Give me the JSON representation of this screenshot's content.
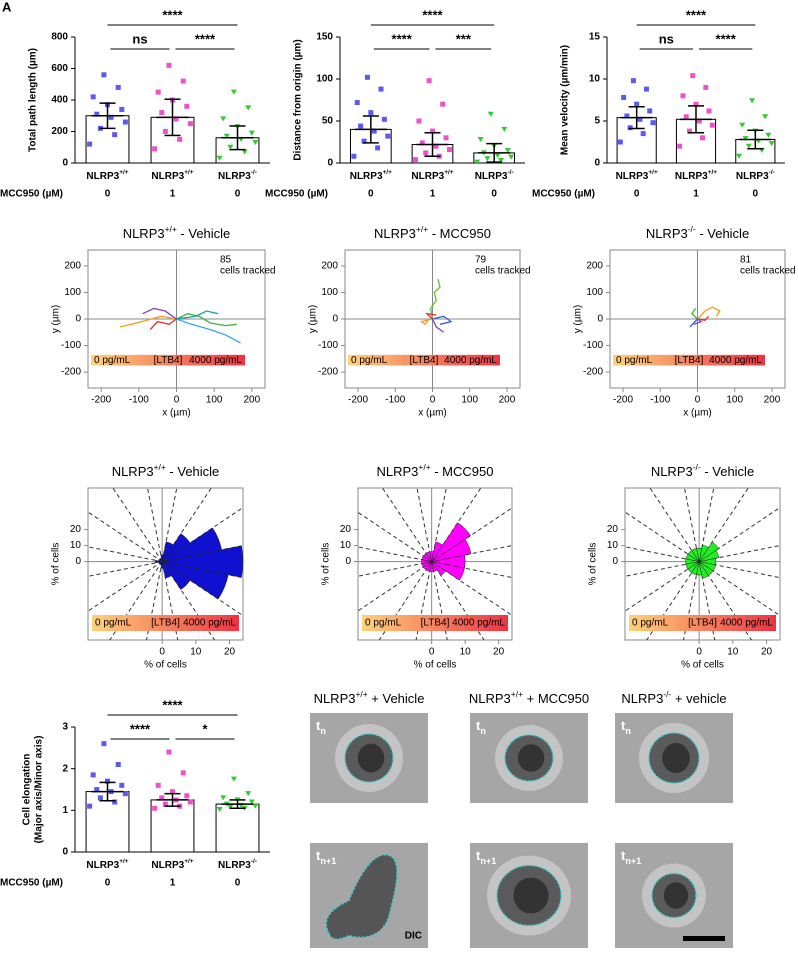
{
  "panel_label": "A",
  "chart_data": [
    {
      "type": "dotbar",
      "ylabel": "Total path length (µm)",
      "categories": [
        {
          "base": "NLRP3",
          "sup": "+/+"
        },
        {
          "base": "NLRP3",
          "sup": "+/+"
        },
        {
          "base": "NLRP3",
          "sup": "-/-"
        }
      ],
      "treatment_label": "MCC950 (µM)",
      "treatment": [
        "0",
        "1",
        "0"
      ],
      "colors": [
        "#5a5af5",
        "#f050d0",
        "#2ecc2e"
      ],
      "markers": [
        "square",
        "square",
        "triangle"
      ],
      "ylim": [
        0,
        800
      ],
      "yticks": [
        0,
        200,
        400,
        600,
        800
      ],
      "means": [
        300,
        290,
        160
      ],
      "sd": [
        80,
        115,
        75
      ],
      "points": [
        [
          120,
          180,
          220,
          260,
          290,
          310,
          340,
          370,
          420,
          480,
          560
        ],
        [
          90,
          150,
          200,
          250,
          280,
          320,
          360,
          400,
          450,
          520,
          620
        ],
        [
          30,
          70,
          100,
          130,
          150,
          170,
          190,
          230,
          280,
          350,
          450
        ]
      ],
      "significance": {
        "g1_vs_g3": "****",
        "g1_vs_g2": "ns",
        "g2_vs_g3": "****"
      }
    },
    {
      "type": "dotbar",
      "ylabel": "Distance from origin (µm)",
      "categories": [
        {
          "base": "NLRP3",
          "sup": "+/+"
        },
        {
          "base": "NLRP3",
          "sup": "+/+"
        },
        {
          "base": "NLRP3",
          "sup": "-/-"
        }
      ],
      "treatment_label": "MCC950 (µM)",
      "treatment": [
        "0",
        "1",
        "0"
      ],
      "colors": [
        "#5a5af5",
        "#f050d0",
        "#2ecc2e"
      ],
      "markers": [
        "square",
        "square",
        "triangle"
      ],
      "ylim": [
        0,
        150
      ],
      "yticks": [
        0,
        50,
        100,
        150
      ],
      "means": [
        40,
        22,
        12
      ],
      "sd": [
        16,
        14,
        11
      ],
      "points": [
        [
          8,
          18,
          26,
          32,
          38,
          44,
          52,
          60,
          72,
          88,
          102
        ],
        [
          4,
          8,
          12,
          16,
          20,
          24,
          30,
          38,
          50,
          70,
          98
        ],
        [
          1,
          3,
          5,
          7,
          9,
          12,
          15,
          20,
          28,
          40,
          58
        ]
      ],
      "significance": {
        "g1_vs_g3": "****",
        "g1_vs_g2": "****",
        "g2_vs_g3": "***"
      }
    },
    {
      "type": "dotbar",
      "ylabel": "Mean velocity (µm/min)",
      "categories": [
        {
          "base": "NLRP3",
          "sup": "+/+"
        },
        {
          "base": "NLRP3",
          "sup": "+/+"
        },
        {
          "base": "NLRP3",
          "sup": "-/-"
        }
      ],
      "treatment_label": "MCC950 (µM)",
      "treatment": [
        "0",
        "1",
        "0"
      ],
      "colors": [
        "#5a5af5",
        "#f050d0",
        "#2ecc2e"
      ],
      "markers": [
        "square",
        "square",
        "triangle"
      ],
      "ylim": [
        0,
        15
      ],
      "yticks": [
        0,
        5,
        10,
        15
      ],
      "means": [
        5.4,
        5.2,
        2.8
      ],
      "sd": [
        1.3,
        1.6,
        1.1
      ],
      "points": [
        [
          2.5,
          3.5,
          4.2,
          4.8,
          5.2,
          5.6,
          6.2,
          7,
          7.8,
          8.8,
          9.8
        ],
        [
          2,
          3,
          3.8,
          4.5,
          5,
          5.5,
          6.2,
          7,
          8,
          9,
          10.4
        ],
        [
          0.8,
          1.5,
          2,
          2.3,
          2.6,
          2.9,
          3.3,
          3.8,
          4.5,
          5.5,
          7.4
        ]
      ],
      "significance": {
        "g1_vs_g3": "****",
        "g1_vs_g2": "ns",
        "g2_vs_g3": "****"
      }
    },
    {
      "type": "tracks",
      "title": {
        "base": "NLRP3",
        "sup": "+/+",
        "rest": " - Vehicle"
      },
      "xlabel": "x (µm)",
      "ylabel": "y (µm)",
      "xlim": [
        -235,
        235
      ],
      "ylim": [
        -260,
        260
      ],
      "xticks": [
        -200,
        -100,
        0,
        100,
        200
      ],
      "yticks": [
        -200,
        -100,
        0,
        100,
        200
      ],
      "cell_count": 85,
      "cell_count_label": "cells tracked",
      "gradient_labels": [
        "0 pg/mL",
        "[LTB4]",
        "4000 pg/mL"
      ],
      "gradient_colors": [
        "#ffd27a",
        "#ee3344"
      ],
      "series": [
        {
          "color": "#f0a020",
          "x": [
            0,
            -40,
            -80,
            -120,
            -150
          ],
          "y": [
            0,
            10,
            -5,
            -20,
            -30
          ]
        },
        {
          "color": "#30a8e0",
          "x": [
            0,
            40,
            90,
            130,
            170
          ],
          "y": [
            0,
            -20,
            -40,
            -60,
            -90
          ]
        },
        {
          "color": "#40b040",
          "x": [
            0,
            30,
            60,
            90,
            130,
            160
          ],
          "y": [
            0,
            20,
            10,
            -15,
            -25,
            -20
          ]
        },
        {
          "color": "#8040c0",
          "x": [
            0,
            -30,
            -60,
            -90
          ],
          "y": [
            0,
            30,
            40,
            20
          ]
        },
        {
          "color": "#20a0a0",
          "x": [
            0,
            50,
            80,
            110
          ],
          "y": [
            0,
            10,
            30,
            20
          ]
        },
        {
          "color": "#e03030",
          "x": [
            0,
            -20,
            -50,
            -70
          ],
          "y": [
            0,
            -20,
            -10,
            -40
          ]
        }
      ]
    },
    {
      "type": "tracks",
      "title": {
        "base": "NLRP3",
        "sup": "+/+",
        "rest": " - MCC950"
      },
      "xlabel": "x (µm)",
      "ylabel": "y (µm)",
      "xlim": [
        -235,
        235
      ],
      "ylim": [
        -260,
        260
      ],
      "xticks": [
        -200,
        -100,
        0,
        100,
        200
      ],
      "yticks": [
        -200,
        -100,
        0,
        100,
        200
      ],
      "cell_count": 79,
      "cell_count_label": "cells tracked",
      "gradient_labels": [
        "0 pg/mL",
        "[LTB4]",
        "4000 pg/mL"
      ],
      "gradient_colors": [
        "#ffd27a",
        "#ee3344"
      ],
      "series": [
        {
          "color": "#60c030",
          "x": [
            0,
            -5,
            10,
            5,
            20,
            15
          ],
          "y": [
            0,
            40,
            70,
            100,
            120,
            150
          ]
        },
        {
          "color": "#f0a020",
          "x": [
            0,
            -30,
            -20,
            -10
          ],
          "y": [
            0,
            -10,
            -20,
            0
          ]
        },
        {
          "color": "#3060e0",
          "x": [
            0,
            30,
            50,
            20
          ],
          "y": [
            0,
            10,
            -10,
            -20
          ]
        },
        {
          "color": "#8040c0",
          "x": [
            0,
            10,
            30
          ],
          "y": [
            0,
            -30,
            -50
          ]
        },
        {
          "color": "#e03030",
          "x": [
            0,
            -15,
            10
          ],
          "y": [
            0,
            20,
            15
          ]
        }
      ]
    },
    {
      "type": "tracks",
      "title": {
        "base": "NLRP3",
        "sup": "-/-",
        "rest": " - Vehicle"
      },
      "xlabel": "x (µm)",
      "ylabel": "y (µm)",
      "xlim": [
        -235,
        235
      ],
      "ylim": [
        -260,
        260
      ],
      "xticks": [
        -200,
        -100,
        0,
        100,
        200
      ],
      "yticks": [
        -200,
        -100,
        0,
        100,
        200
      ],
      "cell_count": 81,
      "cell_count_label": "cells tracked",
      "gradient_labels": [
        "0 pg/mL",
        "[LTB4]",
        "4000 pg/mL"
      ],
      "gradient_colors": [
        "#ffd27a",
        "#ee3344"
      ],
      "series": [
        {
          "color": "#f0a020",
          "x": [
            0,
            20,
            40,
            60,
            50
          ],
          "y": [
            0,
            30,
            45,
            30,
            10
          ]
        },
        {
          "color": "#3060e0",
          "x": [
            0,
            -10,
            -20
          ],
          "y": [
            0,
            -15,
            -30
          ]
        },
        {
          "color": "#40b040",
          "x": [
            0,
            -15,
            -5
          ],
          "y": [
            0,
            20,
            40
          ]
        },
        {
          "color": "#e03030",
          "x": [
            0,
            20,
            30
          ],
          "y": [
            0,
            -5,
            10
          ]
        },
        {
          "color": "#8040c0",
          "x": [
            0,
            10,
            -10
          ],
          "y": [
            0,
            -10,
            -20
          ]
        }
      ]
    },
    {
      "type": "rose",
      "title": {
        "base": "NLRP3",
        "sup": "+/+",
        "rest": " - Vehicle"
      },
      "xlabel": "% of cells",
      "ylabel": "% of cells",
      "xlim": [
        -22,
        24
      ],
      "ylim": [
        -49,
        46
      ],
      "xticks": [
        0,
        10,
        20
      ],
      "yticks": [
        0,
        10,
        20
      ],
      "color": "#1010d0",
      "values": [
        24,
        18,
        10,
        6,
        2,
        1,
        1,
        1,
        2,
        1,
        1,
        1,
        2,
        5,
        10,
        20
      ],
      "gradient_labels": [
        "0 pg/mL",
        "[LTB4]",
        "4000 pg/mL"
      ],
      "gradient_colors": [
        "#ffd27a",
        "#ee3344"
      ]
    },
    {
      "type": "rose",
      "title": {
        "base": "NLRP3",
        "sup": "+/+",
        "rest": " - MCC950"
      },
      "xlabel": "% of cells",
      "ylabel": "% of cells",
      "xlim": [
        -22,
        24
      ],
      "ylim": [
        -49,
        46
      ],
      "xticks": [
        0,
        10,
        20
      ],
      "yticks": [
        0,
        10,
        20
      ],
      "color": "#ff00ff",
      "values": [
        10,
        12,
        14,
        6,
        3,
        3,
        3,
        3,
        3,
        3,
        3,
        3,
        3,
        3,
        5,
        10
      ],
      "gradient_labels": [
        "0 pg/mL",
        "[LTB4]",
        "4000 pg/mL"
      ],
      "gradient_colors": [
        "#ffd27a",
        "#ee3344"
      ]
    },
    {
      "type": "rose",
      "title": {
        "base": "NLRP3",
        "sup": "-/-",
        "rest": " - Vehicle"
      },
      "xlabel": "% of cells",
      "ylabel": "% of cells",
      "xlim": [
        -22,
        24
      ],
      "ylim": [
        -49,
        46
      ],
      "xticks": [
        0,
        10,
        20
      ],
      "yticks": [
        0,
        10,
        20
      ],
      "color": "#22ee22",
      "values": [
        5,
        6,
        7,
        5,
        4,
        4,
        4,
        4,
        4,
        4,
        4,
        4,
        4,
        5,
        5,
        5
      ],
      "gradient_labels": [
        "0 pg/mL",
        "[LTB4]",
        "4000 pg/mL"
      ],
      "gradient_colors": [
        "#ffd27a",
        "#ee3344"
      ]
    },
    {
      "type": "dotbar",
      "ylabel": [
        "Cell elongation",
        "(Major axis/Minor axis)"
      ],
      "categories": [
        {
          "base": "NLRP3",
          "sup": "+/+"
        },
        {
          "base": "NLRP3",
          "sup": "+/+"
        },
        {
          "base": "NLRP3",
          "sup": "-/-"
        }
      ],
      "treatment_label": "MCC950 (µM)",
      "treatment": [
        "0",
        "1",
        "0"
      ],
      "colors": [
        "#5a5af5",
        "#f050d0",
        "#2ecc2e"
      ],
      "markers": [
        "square",
        "square",
        "triangle"
      ],
      "ylim": [
        0,
        3
      ],
      "yticks": [
        0,
        1,
        2,
        3
      ],
      "means": [
        1.45,
        1.25,
        1.15
      ],
      "sd": [
        0.22,
        0.15,
        0.1
      ],
      "points": [
        [
          1.1,
          1.2,
          1.3,
          1.4,
          1.45,
          1.5,
          1.6,
          1.7,
          1.85,
          2.1,
          2.6
        ],
        [
          1.05,
          1.1,
          1.15,
          1.2,
          1.25,
          1.3,
          1.35,
          1.45,
          1.6,
          1.9,
          2.4
        ],
        [
          1.02,
          1.05,
          1.08,
          1.1,
          1.12,
          1.15,
          1.2,
          1.25,
          1.3,
          1.4,
          1.75
        ]
      ],
      "significance": {
        "g1_vs_g3": "****",
        "g1_vs_g2": "****",
        "g2_vs_g3": "*"
      }
    }
  ],
  "micrographs": {
    "columns": [
      {
        "base": "NLRP3",
        "sup": "+/+",
        "rest": " + Vehicle"
      },
      {
        "base": "NLRP3",
        "sup": "+/+",
        "rest": " + MCC950"
      },
      {
        "base": "NLRP3",
        "sup": "-/-",
        "rest": " + vehicle"
      }
    ],
    "time_labels": [
      {
        "base": "t",
        "sub": "n"
      },
      {
        "base": "t",
        "sub": "n+1"
      }
    ],
    "modality": "DIC"
  }
}
